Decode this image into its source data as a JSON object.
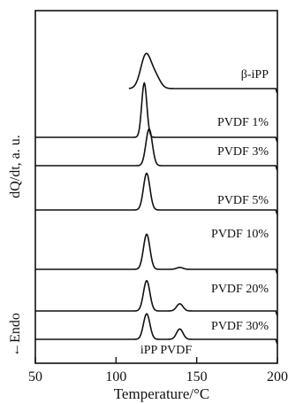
{
  "chart_data": {
    "type": "line",
    "title": "",
    "xlabel": "Temperature/°C",
    "ylabel": "dQ/dt, a. u.",
    "ylabel_annotation": "←Endo",
    "xlim": [
      50,
      200
    ],
    "xticks": [
      50,
      100,
      150,
      200
    ],
    "xtick_labels": [
      "50",
      "100",
      "150",
      "200"
    ],
    "yticks_shown": false,
    "grid": false,
    "peak_annotation": "iPP PVDF",
    "series": [
      {
        "name": "β-iPP",
        "baseline": 0,
        "x_range": [
          108,
          199
        ],
        "peaks": [
          {
            "center": 118.5,
            "height": 2.1,
            "width": 3.2
          },
          {
            "center": 124.5,
            "height": 0.7,
            "width": 3.0
          }
        ]
      },
      {
        "name": "PVDF 1%",
        "baseline": 0,
        "x_range": [
          50,
          199
        ],
        "peaks": [
          {
            "center": 117.5,
            "height": 3.4,
            "width": 1.6
          }
        ]
      },
      {
        "name": "PVDF 3%",
        "baseline": 0,
        "x_range": [
          50,
          199
        ],
        "peaks": [
          {
            "center": 120.5,
            "height": 2.3,
            "width": 2.0
          }
        ]
      },
      {
        "name": "PVDF 5%",
        "baseline": 0,
        "x_range": [
          50,
          199
        ],
        "peaks": [
          {
            "center": 119.0,
            "height": 2.3,
            "width": 2.0
          }
        ]
      },
      {
        "name": "PVDF 10%",
        "baseline": 0,
        "x_range": [
          50,
          199
        ],
        "peaks": [
          {
            "center": 119.0,
            "height": 2.2,
            "width": 2.0
          },
          {
            "center": 139.5,
            "height": 0.12,
            "width": 2.0
          }
        ]
      },
      {
        "name": "PVDF 20%",
        "baseline": 0,
        "x_range": [
          50,
          199
        ],
        "peaks": [
          {
            "center": 119.0,
            "height": 1.9,
            "width": 2.0
          },
          {
            "center": 139.5,
            "height": 0.45,
            "width": 2.0
          }
        ]
      },
      {
        "name": "PVDF 30%",
        "baseline": 0,
        "x_range": [
          50,
          199
        ],
        "peaks": [
          {
            "center": 119.0,
            "height": 1.6,
            "width": 2.0
          },
          {
            "center": 139.5,
            "height": 0.65,
            "width": 2.0
          }
        ]
      }
    ]
  }
}
